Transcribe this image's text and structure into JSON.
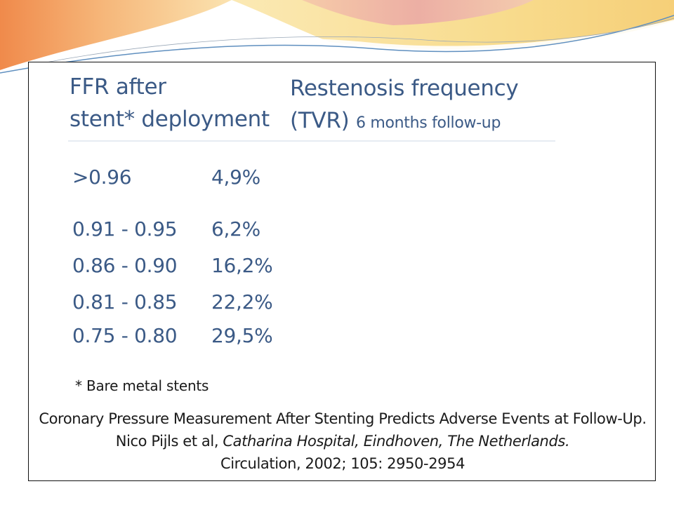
{
  "colors": {
    "heading_text": "#3b5a86",
    "body_text": "#1a1a1a",
    "swoosh_orange": "#f3a25f",
    "swoosh_pink": "#eaa6a6",
    "swoosh_yellow": "#f8dc8e",
    "swoosh_blue": "#5f8fbf",
    "frame_border": "#111111"
  },
  "table": {
    "header_left_line1": "FFR after",
    "header_left_line2": "stent* deployment",
    "header_right_line1": "Restenosis frequency",
    "header_right_line2_main": "(TVR)",
    "header_right_line2_small": "6 months follow-up",
    "rows": [
      {
        "ffr": ">0.96",
        "restenosis": "4,9%"
      },
      {
        "ffr": "0.91 - 0.95",
        "restenosis": "6,2%"
      },
      {
        "ffr": "0.86 - 0.90",
        "restenosis": "16,2%"
      },
      {
        "ffr": "0.81 - 0.85",
        "restenosis": "22,2%"
      },
      {
        "ffr": "0.75 - 0.80",
        "restenosis": "29,5%"
      }
    ]
  },
  "footnote": "* Bare metal stents",
  "citation": {
    "title": "Coronary Pressure Measurement After Stenting Predicts Adverse Events at Follow-Up.",
    "authors": "Nico Pijls et al,",
    "affiliation": "Catharina Hospital, Eindhoven, The Netherlands.",
    "journal": "Circulation, 2002; 105: 2950-2954"
  }
}
